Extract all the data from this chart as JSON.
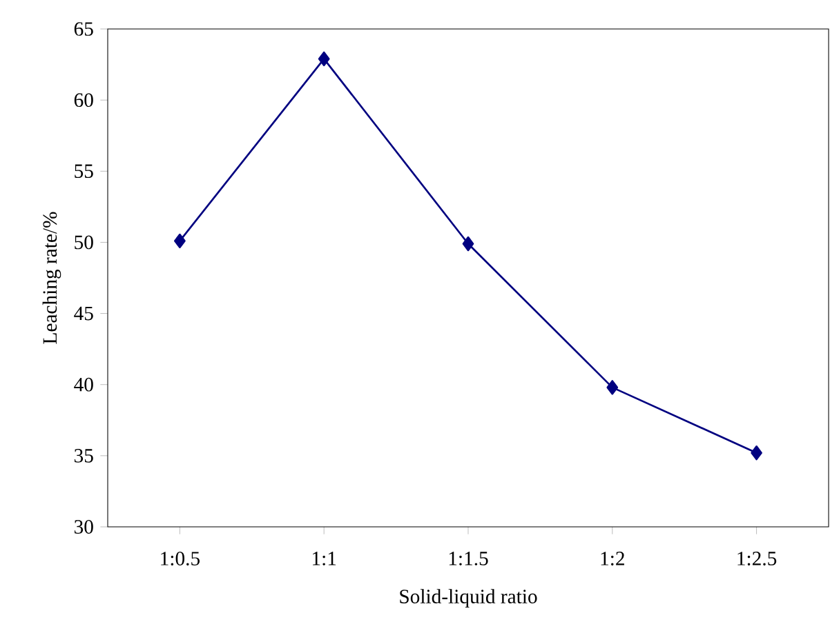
{
  "chart_data": {
    "type": "line",
    "xlabel": "Solid-liquid ratio",
    "ylabel": "Leaching rate/%",
    "categories": [
      "1:0.5",
      "1:1",
      "1:1.5",
      "1:2",
      "1:2.5"
    ],
    "series": [
      {
        "color": "#000080",
        "values": [
          50.1,
          62.9,
          49.9,
          39.8,
          35.2
        ]
      }
    ],
    "ylim": [
      30,
      65
    ],
    "yticks": [
      30,
      35,
      40,
      45,
      50,
      55,
      60,
      65
    ],
    "marker": "diamond",
    "line_style": "solid",
    "grid": false
  }
}
